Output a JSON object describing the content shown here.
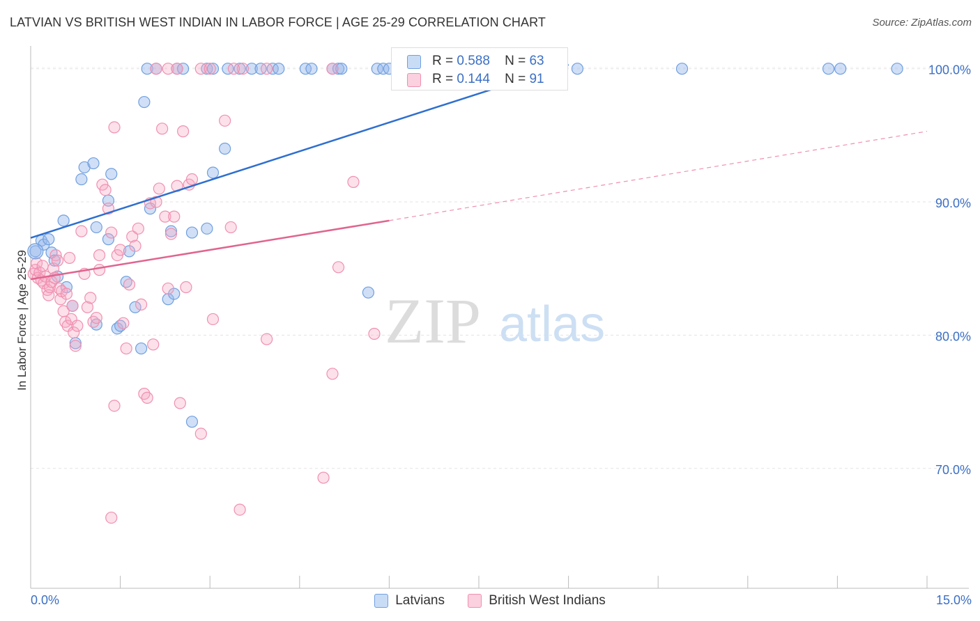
{
  "title": "LATVIAN VS BRITISH WEST INDIAN IN LABOR FORCE | AGE 25-29 CORRELATION CHART",
  "source": "Source: ZipAtlas.com",
  "watermark": {
    "zip": "ZIP",
    "atlas": "atlas"
  },
  "colors": {
    "latvians": "#6f9fe0",
    "latvians_line": "#2e6fcf",
    "bwi": "#f08fb0",
    "bwi_line": "#e0648f",
    "tick_label": "#3b6fc4"
  },
  "legend_top": [
    {
      "series": "latvians",
      "r_label": "R =",
      "r_value": "0.588",
      "n_label": "N =",
      "n_value": "63"
    },
    {
      "series": "bwi",
      "r_label": "R =",
      "r_value": "0.144",
      "n_label": "N =",
      "n_value": "91"
    }
  ],
  "chart_data": {
    "type": "scatter",
    "title": "LATVIAN VS BRITISH WEST INDIAN IN LABOR FORCE | AGE 25-29 CORRELATION CHART",
    "xlabel": "",
    "ylabel": "In Labor Force | Age 25-29",
    "xlim": [
      0,
      15
    ],
    "ylim": [
      61,
      101.5
    ],
    "x_tick_labels": [
      "0.0%",
      "15.0%"
    ],
    "y_ticks": [
      70,
      80,
      90,
      100
    ],
    "y_tick_labels": [
      "70.0%",
      "80.0%",
      "90.0%",
      "100.0%"
    ],
    "grid": true,
    "legend_placement": "bottom",
    "series": [
      {
        "name": "Latvians",
        "key": "latvians",
        "r": 0.588,
        "n": 63,
        "trend": {
          "x": [
            0.0,
            9.0
          ],
          "y": [
            87.3,
            100.3
          ]
        },
        "points": [
          [
            0.08,
            86.3
          ],
          [
            0.18,
            87.1
          ],
          [
            0.22,
            86.8
          ],
          [
            0.3,
            87.2
          ],
          [
            0.35,
            86.2
          ],
          [
            0.4,
            85.6
          ],
          [
            0.45,
            84.4
          ],
          [
            0.55,
            88.6
          ],
          [
            0.6,
            83.6
          ],
          [
            0.7,
            82.2
          ],
          [
            0.75,
            79.4
          ],
          [
            0.85,
            91.7
          ],
          [
            0.9,
            92.6
          ],
          [
            1.05,
            92.9
          ],
          [
            1.1,
            88.1
          ],
          [
            1.3,
            87.2
          ],
          [
            1.35,
            92.1
          ],
          [
            1.3,
            90.1
          ],
          [
            1.45,
            80.5
          ],
          [
            1.5,
            80.7
          ],
          [
            1.6,
            84.0
          ],
          [
            1.65,
            86.3
          ],
          [
            1.75,
            82.1
          ],
          [
            1.85,
            79.0
          ],
          [
            1.9,
            97.5
          ],
          [
            2.0,
            89.5
          ],
          [
            2.3,
            82.7
          ],
          [
            2.35,
            87.8
          ],
          [
            2.4,
            83.1
          ],
          [
            2.7,
            73.5
          ],
          [
            2.7,
            87.7
          ],
          [
            2.95,
            88.0
          ],
          [
            3.05,
            92.2
          ],
          [
            3.25,
            94.0
          ],
          [
            5.65,
            83.2
          ],
          [
            1.1,
            80.8
          ],
          [
            1.95,
            100.0
          ],
          [
            2.1,
            100.0
          ],
          [
            2.45,
            100.0
          ],
          [
            2.55,
            100.0
          ],
          [
            2.95,
            100.0
          ],
          [
            3.05,
            100.0
          ],
          [
            3.3,
            100.0
          ],
          [
            3.5,
            100.0
          ],
          [
            3.7,
            100.0
          ],
          [
            3.85,
            100.0
          ],
          [
            4.05,
            100.0
          ],
          [
            4.15,
            100.0
          ],
          [
            4.6,
            100.0
          ],
          [
            4.7,
            100.0
          ],
          [
            5.05,
            100.0
          ],
          [
            5.15,
            100.0
          ],
          [
            5.2,
            100.0
          ],
          [
            5.8,
            100.0
          ],
          [
            5.9,
            100.0
          ],
          [
            6.0,
            100.0
          ],
          [
            6.25,
            100.0
          ],
          [
            6.35,
            100.0
          ],
          [
            9.15,
            100.0
          ],
          [
            10.9,
            100.0
          ],
          [
            13.35,
            100.0
          ],
          [
            13.55,
            100.0
          ],
          [
            14.5,
            100.0
          ]
        ]
      },
      {
        "name": "British West Indians",
        "key": "bwi",
        "r": 0.144,
        "n": 91,
        "trend": {
          "x": [
            0.0,
            6.0
          ],
          "y": [
            84.2,
            88.6
          ]
        },
        "trend_dashed": {
          "x": [
            6.0,
            15.0
          ],
          "y": [
            88.6,
            95.3
          ]
        },
        "points": [
          [
            0.05,
            84.6
          ],
          [
            0.08,
            84.9
          ],
          [
            0.1,
            85.4
          ],
          [
            0.12,
            84.3
          ],
          [
            0.15,
            84.7
          ],
          [
            0.18,
            84.1
          ],
          [
            0.2,
            85.2
          ],
          [
            0.22,
            83.9
          ],
          [
            0.25,
            84.4
          ],
          [
            0.28,
            83.4
          ],
          [
            0.3,
            83.0
          ],
          [
            0.32,
            83.6
          ],
          [
            0.35,
            84.0
          ],
          [
            0.38,
            85.0
          ],
          [
            0.4,
            84.3
          ],
          [
            0.42,
            86.0
          ],
          [
            0.45,
            85.6
          ],
          [
            0.48,
            83.5
          ],
          [
            0.5,
            82.7
          ],
          [
            0.52,
            83.3
          ],
          [
            0.55,
            81.8
          ],
          [
            0.58,
            81.0
          ],
          [
            0.6,
            83.1
          ],
          [
            0.62,
            80.7
          ],
          [
            0.65,
            85.8
          ],
          [
            0.68,
            81.2
          ],
          [
            0.7,
            82.2
          ],
          [
            0.72,
            80.2
          ],
          [
            0.75,
            79.2
          ],
          [
            0.78,
            80.7
          ],
          [
            0.85,
            87.8
          ],
          [
            0.9,
            84.6
          ],
          [
            0.95,
            82.1
          ],
          [
            1.0,
            82.8
          ],
          [
            1.05,
            81.0
          ],
          [
            1.1,
            81.3
          ],
          [
            1.15,
            84.9
          ],
          [
            1.2,
            91.3
          ],
          [
            1.25,
            90.9
          ],
          [
            1.3,
            89.5
          ],
          [
            1.35,
            87.7
          ],
          [
            1.4,
            95.6
          ],
          [
            1.45,
            86.0
          ],
          [
            1.5,
            86.4
          ],
          [
            1.55,
            80.9
          ],
          [
            1.6,
            79.0
          ],
          [
            1.65,
            83.8
          ],
          [
            1.7,
            87.4
          ],
          [
            1.75,
            86.7
          ],
          [
            1.8,
            88.0
          ],
          [
            1.85,
            82.3
          ],
          [
            1.9,
            75.6
          ],
          [
            1.95,
            75.3
          ],
          [
            2.0,
            89.9
          ],
          [
            2.05,
            79.3
          ],
          [
            2.1,
            90.0
          ],
          [
            2.15,
            91.0
          ],
          [
            2.2,
            95.5
          ],
          [
            2.25,
            88.9
          ],
          [
            2.3,
            83.5
          ],
          [
            2.35,
            87.6
          ],
          [
            2.4,
            88.9
          ],
          [
            2.45,
            91.2
          ],
          [
            2.5,
            74.9
          ],
          [
            2.55,
            95.3
          ],
          [
            2.6,
            83.6
          ],
          [
            2.65,
            91.3
          ],
          [
            2.7,
            91.7
          ],
          [
            2.85,
            72.6
          ],
          [
            3.05,
            81.2
          ],
          [
            3.25,
            96.1
          ],
          [
            3.35,
            88.1
          ],
          [
            3.5,
            66.9
          ],
          [
            3.55,
            100.0
          ],
          [
            2.1,
            100.0
          ],
          [
            2.3,
            100.0
          ],
          [
            2.45,
            100.0
          ],
          [
            2.85,
            100.0
          ],
          [
            3.0,
            100.0
          ],
          [
            3.4,
            100.0
          ],
          [
            3.95,
            100.0
          ],
          [
            5.05,
            100.0
          ],
          [
            3.95,
            79.7
          ],
          [
            4.9,
            69.3
          ],
          [
            5.05,
            77.1
          ],
          [
            5.15,
            85.1
          ],
          [
            5.4,
            91.5
          ],
          [
            5.75,
            80.1
          ],
          [
            1.4,
            74.7
          ],
          [
            1.35,
            66.3
          ],
          [
            1.15,
            86.0
          ]
        ]
      }
    ]
  }
}
